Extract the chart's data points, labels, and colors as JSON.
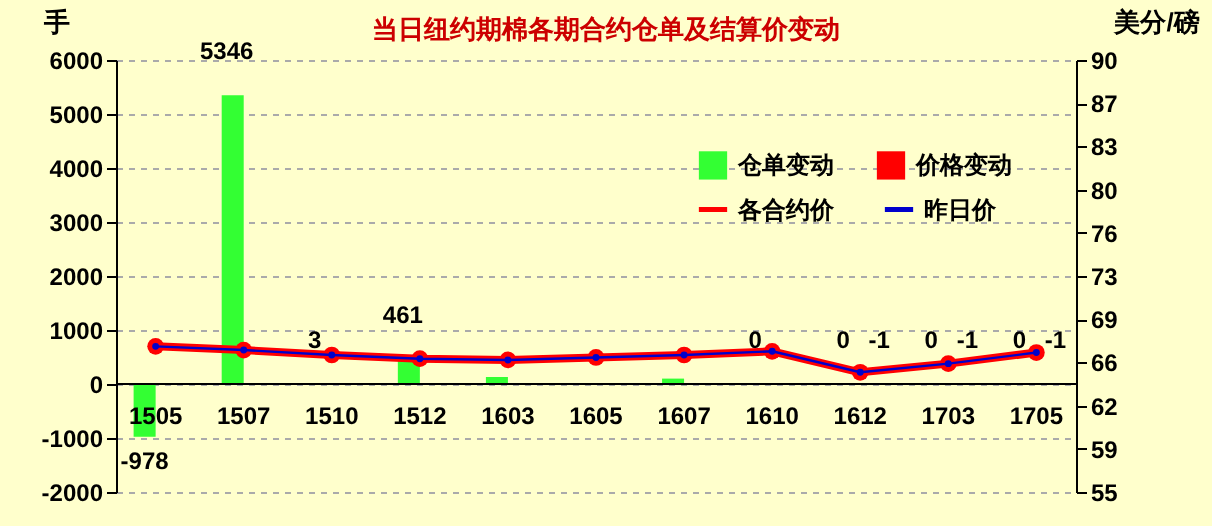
{
  "chart_data": {
    "type": "bar",
    "title": "当日纽约期棉各期合约仓单及结算价变动",
    "ylabel": "手",
    "y2label": "美分/磅",
    "categories": [
      "1505",
      "1507",
      "1510",
      "1512",
      "1603",
      "1605",
      "1607",
      "1610",
      "1612",
      "1703",
      "1705"
    ],
    "series": [
      {
        "name": "仓单变动",
        "type": "bar",
        "color": "#33ff33",
        "values": [
          -978,
          5346,
          3,
          461,
          130,
          null,
          100,
          0,
          0,
          0,
          0
        ],
        "value_labels": [
          "-978",
          "5346",
          "3",
          "461",
          null,
          null,
          null,
          "0",
          "0",
          "0",
          "0"
        ]
      },
      {
        "name": "价格变动",
        "type": "bar",
        "color": "#ff0000",
        "values": [
          null,
          null,
          null,
          null,
          null,
          null,
          null,
          null,
          -1,
          -1,
          -1
        ],
        "value_labels": [
          null,
          null,
          null,
          null,
          null,
          null,
          null,
          null,
          "-1",
          "-1",
          "-1"
        ]
      },
      {
        "name": "各合约价",
        "type": "line",
        "axis": "y2",
        "color": "#ff0000",
        "values": [
          66.8,
          66.5,
          66.1,
          65.8,
          65.7,
          65.9,
          66.1,
          66.4,
          64.7,
          65.4,
          66.3
        ]
      },
      {
        "name": "昨日价",
        "type": "line",
        "axis": "y2",
        "color": "#0000cc",
        "values": [
          66.8,
          66.5,
          66.1,
          65.8,
          65.7,
          65.9,
          66.1,
          66.4,
          64.7,
          65.4,
          66.3
        ]
      }
    ],
    "ylim": [
      -2000,
      6000
    ],
    "yticks": [
      -2000,
      -1000,
      0,
      1000,
      2000,
      3000,
      4000,
      5000,
      6000
    ],
    "y2lim": [
      55,
      90
    ],
    "y2ticks": [
      55,
      {
        "value": 58.5,
        "label": "59"
      },
      62,
      {
        "value": 65.5,
        "label": "66"
      },
      69,
      {
        "value": 72.5,
        "label": "73"
      },
      76,
      {
        "value": 79.5,
        "label": "80"
      },
      83,
      {
        "value": 86.5,
        "label": "87"
      },
      90
    ],
    "grid": "y",
    "legend": "top right",
    "marker": "circle"
  }
}
